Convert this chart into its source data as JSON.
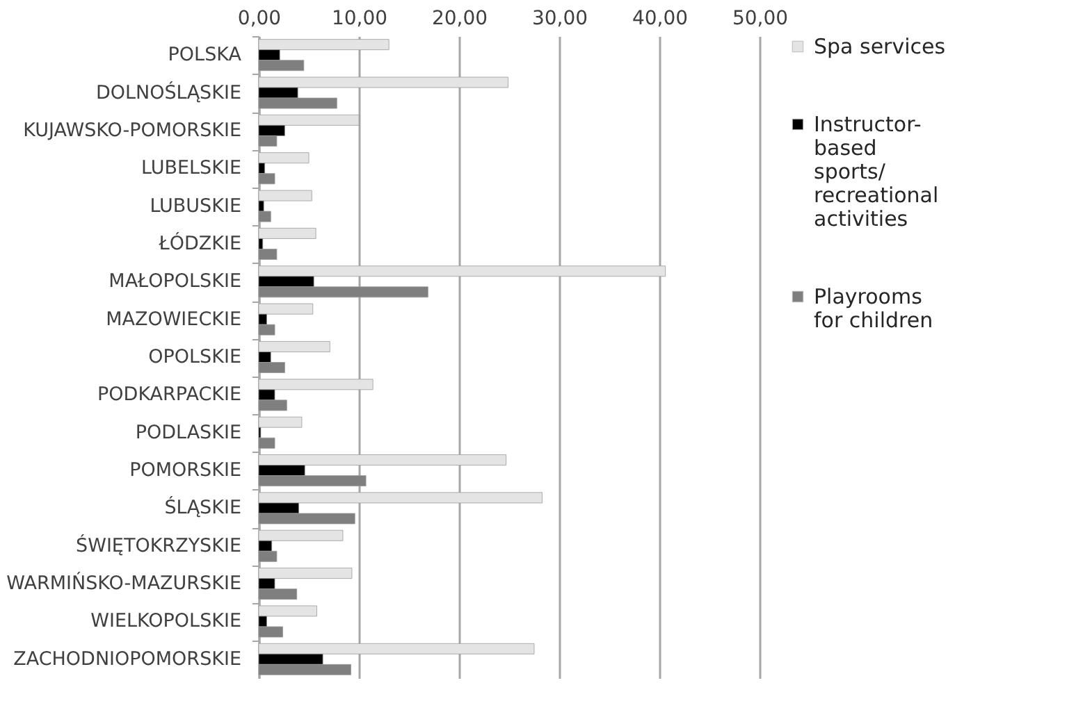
{
  "chart_data": {
    "type": "bar",
    "orientation": "horizontal",
    "categories": [
      "POLSKA",
      "DOLNOŚLĄSKIE",
      "KUJAWSKO-POMORSKIE",
      "LUBELSKIE",
      "LUBUSKIE",
      "ŁÓDZKIE",
      "MAŁOPOLSKIE",
      "MAZOWIECKIE",
      "OPOLSKIE",
      "PODKARPACKIE",
      "PODLASKIE",
      "POMORSKIE",
      "ŚLĄSKIE",
      "ŚWIĘTOKRZYSKIE",
      "WARMIŃSKO-MAZURSKIE",
      "WIELKOPOLSKIE",
      "ZACHODNIOPOMORSKIE"
    ],
    "series": [
      {
        "name": "Spa services",
        "color": "#e4e4e4",
        "values": [
          13.0,
          24.9,
          10.0,
          5.0,
          5.3,
          5.7,
          40.6,
          5.4,
          7.1,
          11.4,
          4.3,
          24.7,
          28.3,
          8.4,
          9.3,
          5.8,
          27.5
        ]
      },
      {
        "name": "Instructor-based sports/ recreational activities",
        "color": "#000000",
        "values": [
          2.1,
          3.9,
          2.6,
          0.6,
          0.5,
          0.4,
          5.5,
          0.8,
          1.2,
          1.6,
          0.2,
          4.6,
          4.0,
          1.3,
          1.6,
          0.8,
          6.4
        ]
      },
      {
        "name": "Playrooms for children",
        "color": "#7f7f7f",
        "values": [
          4.5,
          7.8,
          1.8,
          1.6,
          1.2,
          1.8,
          16.9,
          1.6,
          2.6,
          2.8,
          1.6,
          10.7,
          9.6,
          1.8,
          3.8,
          2.4,
          9.2
        ]
      }
    ],
    "xlim": [
      0,
      50
    ],
    "xticks": [
      {
        "value": 0,
        "label": "0,00"
      },
      {
        "value": 10,
        "label": "10,00"
      },
      {
        "value": 20,
        "label": "20,00"
      },
      {
        "value": 30,
        "label": "30,00"
      },
      {
        "value": 40,
        "label": "40,00"
      },
      {
        "value": 50,
        "label": "50,00"
      }
    ],
    "grid": "x",
    "legend": "right"
  }
}
